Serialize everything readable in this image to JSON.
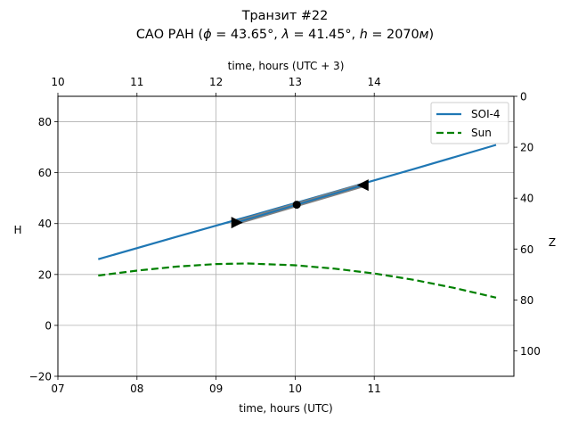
{
  "chart_data": {
    "type": "line",
    "title": "Транзит #22",
    "subtitle": "САО РАН (ϕ = 43.65°, λ = 41.45°, h = 2070м)",
    "subtitle_parts": {
      "prefix": "САО РАН (",
      "phi_sym": "ϕ",
      "phi_val": " = 43.65°, ",
      "lambda_sym": "λ",
      "lambda_val": " = 41.45°, ",
      "h_sym": "h",
      "h_val": " = 2070",
      "unit": "м",
      "suffix": ")"
    },
    "xlabel": "time, hours (UTC)",
    "xlabel_top": "time, hours (UTC + 3)",
    "ylabel": "H",
    "ylabel_right": "Z",
    "xlim": [
      7,
      12.77
    ],
    "ylim": [
      -20,
      90
    ],
    "ylim_right": [
      110,
      0
    ],
    "grid": true,
    "xticks": [
      7,
      8,
      9,
      10,
      11
    ],
    "xtick_labels": [
      "07",
      "08",
      "09",
      "10",
      "11"
    ],
    "xticks_top_labels": [
      "10",
      "11",
      "12",
      "13",
      "14"
    ],
    "yticks": [
      -20,
      0,
      20,
      40,
      60,
      80
    ],
    "ytick_labels": [
      "−20",
      "0",
      "20",
      "40",
      "60",
      "80"
    ],
    "yticks_right": [
      0,
      20,
      40,
      60,
      80,
      100
    ],
    "ytick_right_labels": [
      "0",
      "20",
      "40",
      "60",
      "80",
      "100"
    ],
    "legend_position": "top-right",
    "series": [
      {
        "name": "SOI-4",
        "color": "#1f77b4",
        "style": "solid",
        "x": [
          7.51,
          8.5,
          9.5,
          10.5,
          11.5,
          12.54
        ],
        "y": [
          26.0,
          34.8,
          43.6,
          52.5,
          61.4,
          70.9
        ]
      },
      {
        "name": "Sun",
        "color": "#008000",
        "style": "dashed",
        "x": [
          7.51,
          8.0,
          8.5,
          9.0,
          9.4,
          10.0,
          10.5,
          11.0,
          11.5,
          12.0,
          12.54
        ],
        "y": [
          19.6,
          21.5,
          23.1,
          24.1,
          24.3,
          23.6,
          22.3,
          20.4,
          17.9,
          14.8,
          10.9
        ]
      }
    ],
    "transit_path": {
      "color": "#808080",
      "x": [
        9.26,
        10.02,
        10.86
      ],
      "y": [
        40.4,
        47.4,
        55.1
      ],
      "markers": [
        {
          "type": "triangle-right",
          "x": 9.26,
          "y": 40.4
        },
        {
          "type": "dot",
          "x": 10.02,
          "y": 47.4
        },
        {
          "type": "triangle-left",
          "x": 10.86,
          "y": 55.1
        }
      ]
    }
  }
}
